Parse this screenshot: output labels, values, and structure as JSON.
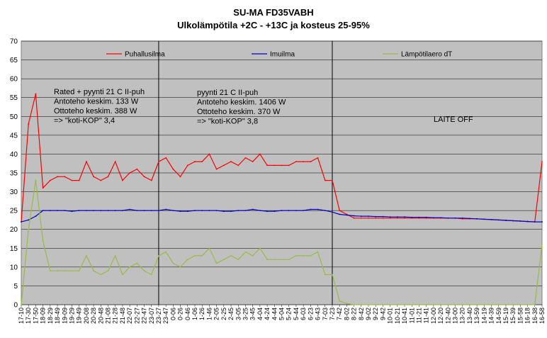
{
  "chart_data": {
    "type": "line",
    "title": "SU-MA FD35VABH",
    "subtitle": "Ulkolämpötila +2C - +13C ja kosteus 25-95%",
    "ylim": [
      0,
      70
    ],
    "yticks": [
      0,
      5,
      10,
      15,
      20,
      25,
      30,
      35,
      40,
      45,
      50,
      55,
      60,
      65,
      70
    ],
    "grid": "y-major",
    "plot_background": "#c0c0c0",
    "legend_position": "top",
    "categories": [
      "17-10",
      "17-30",
      "17-50",
      "18-09",
      "18-29",
      "18-49",
      "19-09",
      "19-29",
      "19-49",
      "20-08",
      "20-28",
      "20-48",
      "21-08",
      "21-28",
      "21-48",
      "22-07",
      "22-27",
      "22-47",
      "23-07",
      "23-27",
      "23-47",
      "0-06",
      "0-26",
      "0-46",
      "1-06",
      "1-26",
      "1-46",
      "2-05",
      "2-25",
      "2-45",
      "3-05",
      "3-25",
      "3-45",
      "4-04",
      "4-24",
      "4-44",
      "5-04",
      "5-24",
      "5-44",
      "6-03",
      "6-23",
      "6-43",
      "7-03",
      "7-23",
      "7-42",
      "8-02",
      "8-22",
      "8-42",
      "9-02",
      "9-22",
      "9-42",
      "10-01",
      "10-21",
      "10-41",
      "11-01",
      "11-21",
      "11-41",
      "12-00",
      "12-20",
      "12-40",
      "13-00",
      "13-20",
      "13-40",
      "13-59",
      "14-19",
      "14-39",
      "14-59",
      "15-19",
      "15-39",
      "15-58",
      "16-18",
      "16-38",
      "16-58"
    ],
    "series": [
      {
        "name": "Puhallusilma",
        "color": "#ff0000",
        "values": [
          22,
          48,
          56,
          31,
          33,
          34,
          34,
          33,
          33,
          38,
          34,
          33,
          34,
          38,
          33,
          35,
          36,
          34,
          33,
          38,
          39,
          36,
          34,
          37,
          38,
          38,
          40,
          36,
          37,
          38,
          37,
          39,
          38,
          40,
          37,
          37,
          37,
          37,
          38,
          38,
          38,
          39,
          33,
          33,
          25,
          24,
          23,
          23,
          23,
          23,
          23,
          23,
          23,
          23,
          23,
          23,
          23,
          23,
          23,
          23,
          23,
          22.8,
          22.8,
          22.8,
          22.7,
          22.6,
          22.5,
          22.4,
          22.3,
          22.2,
          22.1,
          22,
          38
        ]
      },
      {
        "name": "Imuilma",
        "color": "#0000cc",
        "values": [
          22,
          22.5,
          23.5,
          25,
          25,
          25,
          25,
          24.8,
          25,
          25,
          25,
          25,
          25,
          25,
          25,
          25.3,
          25,
          25,
          25,
          25,
          25.3,
          25,
          24.8,
          24.8,
          25,
          25,
          25,
          25,
          24.8,
          24.8,
          25,
          25,
          25.3,
          25,
          24.8,
          24.8,
          25,
          25,
          25,
          25,
          25.3,
          25.3,
          25,
          24.6,
          24,
          23.8,
          23.6,
          23.5,
          23.5,
          23.4,
          23.4,
          23.3,
          23.3,
          23.3,
          23.2,
          23.2,
          23.2,
          23.1,
          23.1,
          23,
          23,
          23,
          22.9,
          22.8,
          22.7,
          22.6,
          22.5,
          22.4,
          22.3,
          22.2,
          22.1,
          22,
          22
        ]
      },
      {
        "name": "Lämpötilaero dT",
        "color": "#99bb44",
        "values": [
          0,
          20,
          33,
          17,
          9,
          9,
          9,
          9,
          9,
          13,
          9,
          8,
          9,
          13,
          8,
          10,
          11,
          9,
          8,
          13,
          14,
          11,
          10,
          12,
          13,
          13,
          15,
          11,
          12,
          13,
          12,
          14,
          13,
          15,
          12,
          12,
          12,
          12,
          13,
          13,
          13,
          14,
          8,
          8,
          1,
          0.3,
          0,
          0,
          0,
          0,
          0,
          0,
          0,
          0,
          0,
          0,
          0,
          0,
          0,
          0,
          0,
          0,
          0,
          0,
          0,
          0,
          0,
          0,
          0,
          0,
          0,
          0,
          16
        ]
      }
    ],
    "vlines_at": [
      "23-27",
      "7-23"
    ],
    "annotations": [
      {
        "id": "seg1",
        "lines": [
          "Rated + pyynti 21 C II-puh",
          "Antoteho keskim. 133 W",
          "Ottoteho keskim. 388 W",
          "=> \"koti-KOP\"  3,4"
        ]
      },
      {
        "id": "seg2",
        "lines": [
          "pyynti 21 C II-puh",
          "Antoteho keskim. 1406 W",
          "Ottoteho keskim. 370 W",
          "=> \"koti-KOP\"  3,8"
        ]
      },
      {
        "id": "seg3",
        "lines": [
          "LAITE OFF"
        ]
      }
    ]
  }
}
